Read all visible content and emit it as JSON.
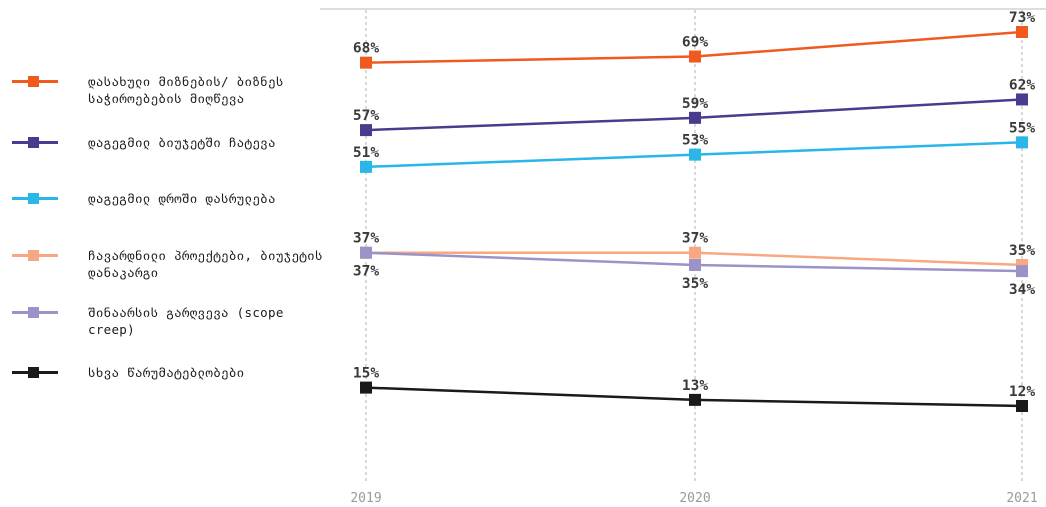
{
  "chart_data": {
    "type": "line",
    "x": [
      "2019",
      "2020",
      "2021"
    ],
    "grid": "vertical dashed at each year",
    "legend": "left",
    "series": [
      {
        "name": "დასახული მიზნების/ ბიზნეს საჭიროებების მიღწევა",
        "color": "#f05a1e",
        "values": [
          68,
          69,
          73
        ],
        "labels": [
          "68%",
          "69%",
          "73%"
        ],
        "label_pos": [
          "above",
          "above",
          "above"
        ]
      },
      {
        "name": "დაგეგმილ ბიუჯეტში ჩატევა",
        "color": "#4a3b8f",
        "values": [
          57,
          59,
          62
        ],
        "labels": [
          "57%",
          "59%",
          "62%"
        ],
        "label_pos": [
          "above",
          "above",
          "above"
        ]
      },
      {
        "name": "დაგეგმილ დროში დასრულება",
        "color": "#29b6e8",
        "values": [
          51,
          53,
          55
        ],
        "labels": [
          "51%",
          "53%",
          "55%"
        ],
        "label_pos": [
          "above",
          "above",
          "above"
        ]
      },
      {
        "name": "ჩავარდნილი პროექტები, ბიუჯეტის დანაკარგი",
        "color": "#f7a882",
        "values": [
          37,
          37,
          35
        ],
        "labels": [
          "37%",
          "37%",
          "35%"
        ],
        "label_pos": [
          "above",
          "above",
          "above"
        ]
      },
      {
        "name": "შინაარსის გარღვევა (scope creep)",
        "color": "#9b92c8",
        "values": [
          37,
          35,
          34
        ],
        "labels": [
          "37%",
          "35%",
          "34%"
        ],
        "label_pos": [
          "below",
          "below",
          "below"
        ]
      },
      {
        "name": "სხვა წარუმატებლობები",
        "color": "#1a1a1a",
        "values": [
          15,
          13,
          12
        ],
        "labels": [
          "15%",
          "13%",
          "12%"
        ],
        "label_pos": [
          "above",
          "above",
          "above"
        ]
      }
    ]
  }
}
